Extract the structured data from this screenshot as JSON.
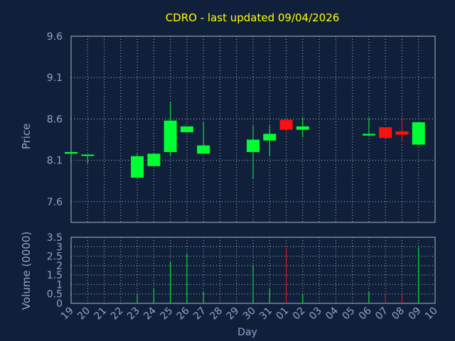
{
  "chart_data": {
    "type": "candlestick",
    "title": "CDRO - last updated 09/04/2026",
    "xlabel": "Day",
    "x_ticks": [
      "19",
      "20",
      "21",
      "22",
      "23",
      "24",
      "25",
      "26",
      "27",
      "28",
      "29",
      "30",
      "31",
      "01",
      "02",
      "03",
      "04",
      "05",
      "06",
      "07",
      "08",
      "09",
      "10"
    ],
    "price_panel": {
      "ylabel": "Price",
      "ylim": [
        7.35,
        9.6
      ],
      "y_ticks": [
        "9.6",
        "9.1",
        "8.6",
        "8.1",
        "7.6"
      ],
      "y_tick_values": [
        9.6,
        9.1,
        8.6,
        8.1,
        7.6
      ],
      "candles": [
        {
          "day": "19",
          "open": 8.18,
          "high": 8.2,
          "low": 8.16,
          "close": 8.2
        },
        {
          "day": "20",
          "open": 8.16,
          "high": 8.17,
          "low": 8.06,
          "close": 8.17
        },
        {
          "day": "23",
          "open": 7.89,
          "high": 8.18,
          "low": 7.89,
          "close": 8.15
        },
        {
          "day": "24",
          "open": 8.03,
          "high": 8.18,
          "low": 8.03,
          "close": 8.18
        },
        {
          "day": "25",
          "open": 8.2,
          "high": 8.8,
          "low": 8.15,
          "close": 8.58
        },
        {
          "day": "26",
          "open": 8.44,
          "high": 8.51,
          "low": 8.44,
          "close": 8.51
        },
        {
          "day": "27",
          "open": 8.18,
          "high": 8.57,
          "low": 8.18,
          "close": 8.28
        },
        {
          "day": "30",
          "open": 8.2,
          "high": 8.52,
          "low": 7.88,
          "close": 8.35
        },
        {
          "day": "31",
          "open": 8.34,
          "high": 8.52,
          "low": 8.15,
          "close": 8.42
        },
        {
          "day": "01",
          "open": 8.59,
          "high": 8.59,
          "low": 8.45,
          "close": 8.47
        },
        {
          "day": "02",
          "open": 8.47,
          "high": 8.62,
          "low": 8.38,
          "close": 8.51
        },
        {
          "day": "06",
          "open": 8.4,
          "high": 8.62,
          "low": 8.4,
          "close": 8.42
        },
        {
          "day": "07",
          "open": 8.5,
          "high": 8.5,
          "low": 8.36,
          "close": 8.37
        },
        {
          "day": "08",
          "open": 8.45,
          "high": 8.6,
          "low": 8.32,
          "close": 8.41
        },
        {
          "day": "09",
          "open": 8.29,
          "high": 8.56,
          "low": 8.29,
          "close": 8.56
        }
      ]
    },
    "volume_panel": {
      "ylabel": "Volume (0000)",
      "ylim": [
        0,
        3.5
      ],
      "y_ticks": [
        "3.5",
        "3",
        "2.5",
        "2",
        "1.5",
        "1",
        "0.5",
        "0"
      ],
      "y_tick_values": [
        3.5,
        3,
        2.5,
        2,
        1.5,
        1,
        0.5,
        0
      ],
      "bars": [
        {
          "day": "19",
          "volume": 0.0,
          "direction": "up"
        },
        {
          "day": "20",
          "volume": 0.0,
          "direction": "up"
        },
        {
          "day": "23",
          "volume": 0.5,
          "direction": "up"
        },
        {
          "day": "24",
          "volume": 0.8,
          "direction": "up"
        },
        {
          "day": "25",
          "volume": 2.2,
          "direction": "up"
        },
        {
          "day": "26",
          "volume": 2.65,
          "direction": "up"
        },
        {
          "day": "27",
          "volume": 0.6,
          "direction": "up"
        },
        {
          "day": "30",
          "volume": 2.05,
          "direction": "up"
        },
        {
          "day": "31",
          "volume": 0.8,
          "direction": "up"
        },
        {
          "day": "01",
          "volume": 2.95,
          "direction": "down"
        },
        {
          "day": "02",
          "volume": 0.5,
          "direction": "up"
        },
        {
          "day": "06",
          "volume": 0.6,
          "direction": "up"
        },
        {
          "day": "07",
          "volume": 0.5,
          "direction": "down"
        },
        {
          "day": "08",
          "volume": 0.5,
          "direction": "down"
        },
        {
          "day": "09",
          "volume": 2.95,
          "direction": "up"
        }
      ]
    },
    "grid": true,
    "colors": {
      "background": "#11203a",
      "title": "#ffff00",
      "axis_text": "#8ea4c8",
      "grid": "#a9b3c2",
      "up": "#00ff33",
      "down": "#ff1010"
    }
  }
}
